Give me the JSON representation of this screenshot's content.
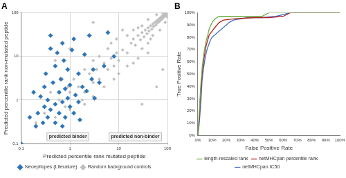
{
  "chart_data": [
    {
      "type": "scatter",
      "title": "A",
      "x_label": "Predicted percentile rank mutated peptide",
      "y_label": "Predicted percentile rank non-mutated peptide",
      "log": true,
      "grid": true,
      "legend": "bottom",
      "xlim": [
        0.1,
        100
      ],
      "ylim": [
        0.1,
        100
      ],
      "xticks": [
        0.1,
        1,
        10,
        100
      ],
      "yticks": [
        0.1,
        1,
        10,
        100
      ],
      "annotations": [
        "predicted binder",
        "predicted non-binder"
      ],
      "series": [
        {
          "name": "Random background controls",
          "color": "#bfbfbf",
          "marker": "diamond",
          "x": [
            12,
            15,
            18,
            20,
            22,
            25,
            28,
            30,
            33,
            35,
            38,
            40,
            42,
            45,
            48,
            50,
            52,
            55,
            58,
            60,
            62,
            65,
            68,
            70,
            72,
            75,
            78,
            80,
            82,
            85,
            88,
            90,
            92,
            95,
            97,
            99,
            30,
            50,
            40,
            70,
            60,
            90,
            25,
            45,
            80,
            99,
            20,
            40,
            15,
            30,
            1.5,
            2,
            2.5,
            3,
            3.5,
            4,
            5,
            6,
            7,
            8,
            9,
            10,
            2,
            5,
            3,
            8,
            4,
            10,
            6,
            15,
            7,
            20,
            1.2,
            3,
            9,
            25,
            12,
            40,
            1,
            1.8,
            0.3,
            0.5,
            0.6,
            0.8,
            0.4,
            0.9,
            0.2,
            1,
            0.7,
            2,
            0.5,
            1,
            60,
            30,
            80,
            3
          ],
          "values": [
            14,
            12,
            20,
            25,
            18,
            30,
            24,
            35,
            28,
            40,
            33,
            45,
            38,
            50,
            42,
            55,
            48,
            60,
            52,
            65,
            58,
            70,
            62,
            75,
            68,
            80,
            72,
            85,
            78,
            90,
            82,
            95,
            88,
            98,
            93,
            99,
            50,
            30,
            70,
            40,
            90,
            60,
            45,
            25,
            99,
            80,
            40,
            20,
            30,
            15,
            2,
            1.5,
            4,
            2.5,
            5,
            3,
            7,
            5,
            9,
            6,
            12,
            8,
            5,
            2,
            8,
            3,
            10,
            4,
            15,
            6,
            20,
            7,
            3,
            1.2,
            25,
            9,
            40,
            12,
            1.5,
            1,
            0.5,
            0.4,
            1,
            0.7,
            1.5,
            2,
            0.3,
            0.6,
            3,
            0.8,
            8,
            15,
            2,
            0.8,
            5,
            60
          ]
        },
        {
          "name": "Neoepitopes (Literature)",
          "color": "#2e75b6",
          "marker": "diamond",
          "x": [
            0.1,
            0.2,
            0.22,
            0.25,
            0.28,
            0.3,
            0.3,
            0.32,
            0.35,
            0.35,
            0.4,
            0.4,
            0.4,
            0.45,
            0.5,
            0.5,
            0.5,
            0.55,
            0.6,
            0.6,
            0.65,
            0.7,
            0.7,
            0.75,
            0.8,
            0.8,
            0.9,
            0.9,
            1,
            1,
            1.1,
            1.2,
            1.2,
            1.3,
            1.5,
            1.5,
            1.6,
            1.8,
            2,
            2.2,
            2.5,
            2.8,
            3,
            3.2,
            4,
            5,
            6,
            8,
            0.15,
            0.18,
            0.7
          ],
          "values": [
            0.1,
            0.25,
            0.5,
            1.2,
            0.3,
            0.7,
            2,
            4,
            0.4,
            1,
            0.6,
            15,
            30,
            2.5,
            0.3,
            0.8,
            6,
            12,
            1.5,
            0.5,
            3,
            0.9,
            20,
            8,
            0.4,
            1.8,
            1.1,
            5,
            0.7,
            2.2,
            14,
            0.5,
            25,
            1.3,
            0.9,
            4,
            0.35,
            2,
            11,
            1.6,
            30,
            3,
            5,
            1.1,
            2.5,
            6,
            35,
            10,
            0.4,
            1.5,
            0.25
          ]
        }
      ]
    },
    {
      "type": "line",
      "title": "B",
      "x_label": "False Positive Rate",
      "y_label": "True Positive Rate",
      "grid": false,
      "legend": "bottom",
      "xlim": [
        0,
        100
      ],
      "ylim": [
        0,
        100
      ],
      "xticks": [
        {
          "value": 0,
          "label": "0%"
        },
        {
          "value": 10,
          "label": "10%"
        },
        {
          "value": 20,
          "label": "20%"
        },
        {
          "value": 30,
          "label": "30%"
        },
        {
          "value": 40,
          "label": "40%"
        },
        {
          "value": 50,
          "label": "50%"
        },
        {
          "value": 60,
          "label": "60%"
        },
        {
          "value": 70,
          "label": "70%"
        },
        {
          "value": 80,
          "label": "80%"
        },
        {
          "value": 90,
          "label": "90%"
        },
        {
          "value": 100,
          "label": "100%"
        }
      ],
      "yticks": [
        {
          "value": 0,
          "label": "0%"
        },
        {
          "value": 10,
          "label": "10%"
        },
        {
          "value": 20,
          "label": "20%"
        },
        {
          "value": 30,
          "label": "30%"
        },
        {
          "value": 40,
          "label": "40%"
        },
        {
          "value": 50,
          "label": "50%"
        },
        {
          "value": 60,
          "label": "60%"
        },
        {
          "value": 70,
          "label": "70%"
        },
        {
          "value": 80,
          "label": "80%"
        },
        {
          "value": 90,
          "label": "90%"
        },
        {
          "value": 100,
          "label": "100%"
        }
      ],
      "series": [
        {
          "name": "netMHCpan IC50",
          "color": "#4472c4",
          "line_style": "solid",
          "x": [
            0,
            1,
            2,
            3,
            4,
            5,
            6,
            7,
            8,
            9,
            10,
            12,
            14,
            16,
            18,
            20,
            22,
            25,
            30,
            35,
            45,
            55,
            65,
            100
          ],
          "values": [
            0,
            10,
            25,
            45,
            55,
            62,
            68,
            72,
            75,
            78,
            80,
            82,
            84,
            86,
            88,
            90,
            92,
            94,
            95,
            96,
            96,
            97,
            100,
            100
          ]
        },
        {
          "name": "netMHCpan percentile rank",
          "color": "#b22222",
          "line_style": "solid",
          "x": [
            0,
            1,
            2,
            3,
            4,
            5,
            6,
            7,
            8,
            10,
            12,
            15,
            18,
            25,
            40,
            50,
            60,
            65,
            100
          ],
          "values": [
            0,
            15,
            35,
            50,
            60,
            68,
            74,
            78,
            82,
            85,
            88,
            92,
            94,
            95,
            96,
            96,
            97,
            100,
            100
          ]
        },
        {
          "name": "length-rescaled rank",
          "color": "#70ad47",
          "line_style": "solid",
          "x": [
            0,
            1,
            2,
            3,
            4,
            5,
            6,
            7,
            8,
            10,
            12,
            15,
            20,
            45,
            50,
            100
          ],
          "values": [
            0,
            20,
            40,
            55,
            65,
            72,
            78,
            82,
            87,
            92,
            95,
            97,
            97,
            97,
            100,
            100
          ]
        }
      ]
    }
  ]
}
